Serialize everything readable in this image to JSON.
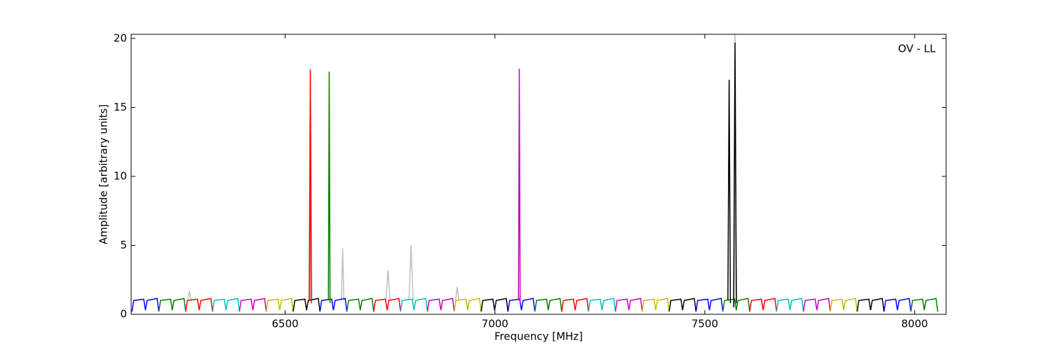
{
  "chart_data": {
    "type": "line",
    "xlabel": "Frequency [MHz]",
    "ylabel": "Amplitude [arbitrary units]",
    "annotation": "OV - LL",
    "xlim": [
      6133,
      8075
    ],
    "ylim": [
      0,
      20.3
    ],
    "xticks": [
      6500,
      7000,
      7500,
      8000
    ],
    "yticks": [
      0,
      5,
      10,
      15,
      20
    ],
    "series": [
      {
        "color": "#bfbfbf",
        "x": [
          6268,
          6272,
          6276,
          null,
          6634,
          6637,
          6640,
          null,
          6740,
          6745,
          6750,
          null,
          6795,
          6800,
          6805,
          null,
          6906,
          6910,
          6914,
          null,
          6556,
          6560,
          6564,
          null,
          7568,
          7572,
          7576
        ],
        "values": [
          1.0,
          1.7,
          1.0,
          null,
          1.0,
          4.8,
          1.0,
          null,
          1.0,
          3.2,
          1.0,
          null,
          1.0,
          5.0,
          1.0,
          null,
          1.0,
          2.0,
          1.0,
          null,
          1.0,
          17.9,
          1.0,
          null,
          1.0,
          20.3,
          1.0
        ]
      },
      {
        "color": "#0000ff",
        "x": [
          6135,
          6139,
          6163,
          6167,
          6171,
          6195,
          6199,
          null,
          6583,
          6587,
          6611,
          6615,
          6619,
          6643,
          6647,
          null,
          7031,
          7035,
          7059,
          7063,
          7067,
          7091,
          7095,
          null,
          7479,
          7483,
          7507,
          7511,
          7515,
          7539,
          7543,
          null,
          7927,
          7931,
          7955,
          7959,
          7963,
          7987,
          7991
        ],
        "values": [
          0.2,
          1.0,
          1.1,
          0.3,
          1.0,
          1.15,
          0.2,
          null,
          0.2,
          1.0,
          1.1,
          0.3,
          1.0,
          1.15,
          0.2,
          null,
          0.2,
          1.0,
          1.1,
          0.3,
          1.0,
          1.15,
          0.2,
          null,
          0.2,
          1.0,
          1.1,
          0.3,
          1.0,
          1.15,
          0.2,
          null,
          0.2,
          1.0,
          1.1,
          0.3,
          1.0,
          1.15,
          0.2
        ]
      },
      {
        "color": "#008000",
        "x": [
          6199,
          6203,
          6227,
          6231,
          6235,
          6259,
          6263,
          null,
          6647,
          6651,
          6675,
          6679,
          6683,
          6707,
          6711,
          null,
          7095,
          7099,
          7123,
          7127,
          7131,
          7155,
          7159,
          null,
          7543,
          7547,
          7571,
          7575,
          7579,
          7603,
          7607,
          null,
          7991,
          7995,
          8019,
          8023,
          8027,
          8051,
          8055
        ],
        "values": [
          0.2,
          1.0,
          1.1,
          0.3,
          1.0,
          1.15,
          0.2,
          null,
          0.2,
          1.0,
          1.1,
          0.3,
          1.0,
          1.15,
          0.2,
          null,
          0.2,
          1.0,
          1.1,
          0.3,
          1.0,
          1.15,
          0.2,
          null,
          0.2,
          1.0,
          1.1,
          0.3,
          1.0,
          1.15,
          0.2,
          null,
          0.2,
          1.0,
          1.1,
          0.3,
          1.0,
          1.15,
          0.2
        ]
      },
      {
        "color": "#ff0000",
        "x": [
          6263,
          6267,
          6291,
          6295,
          6299,
          6323,
          6327,
          null,
          6711,
          6715,
          6739,
          6743,
          6747,
          6771,
          6775,
          null,
          7159,
          7163,
          7187,
          7191,
          7195,
          7219,
          7223,
          null,
          7607,
          7611,
          7635,
          7639,
          7643,
          7667,
          7671
        ],
        "values": [
          0.2,
          1.0,
          1.1,
          0.3,
          1.0,
          1.15,
          0.2,
          null,
          0.2,
          1.0,
          1.1,
          0.3,
          1.0,
          1.15,
          0.2,
          null,
          0.2,
          1.0,
          1.1,
          0.3,
          1.0,
          1.15,
          0.2,
          null,
          0.2,
          1.0,
          1.1,
          0.3,
          1.0,
          1.15,
          0.2
        ]
      },
      {
        "color": "#00bfbf",
        "x": [
          6327,
          6331,
          6355,
          6359,
          6363,
          6387,
          6391,
          null,
          6775,
          6779,
          6803,
          6807,
          6811,
          6835,
          6839,
          null,
          7223,
          7227,
          7251,
          7255,
          7259,
          7283,
          7287,
          null,
          7671,
          7675,
          7699,
          7703,
          7707,
          7731,
          7735
        ],
        "values": [
          0.2,
          1.0,
          1.1,
          0.3,
          1.0,
          1.15,
          0.2,
          null,
          0.2,
          1.0,
          1.1,
          0.3,
          1.0,
          1.15,
          0.2,
          null,
          0.2,
          1.0,
          1.1,
          0.3,
          1.0,
          1.15,
          0.2,
          null,
          0.2,
          1.0,
          1.1,
          0.3,
          1.0,
          1.15,
          0.2
        ]
      },
      {
        "color": "#bf00bf",
        "x": [
          6391,
          6395,
          6419,
          6423,
          6427,
          6451,
          6455,
          null,
          6839,
          6843,
          6867,
          6871,
          6875,
          6899,
          6903,
          null,
          7287,
          7291,
          7315,
          7319,
          7323,
          7347,
          7351,
          null,
          7735,
          7739,
          7763,
          7767,
          7771,
          7795,
          7799
        ],
        "values": [
          0.2,
          1.0,
          1.1,
          0.3,
          1.0,
          1.15,
          0.2,
          null,
          0.2,
          1.0,
          1.1,
          0.3,
          1.0,
          1.15,
          0.2,
          null,
          0.2,
          1.0,
          1.1,
          0.3,
          1.0,
          1.15,
          0.2,
          null,
          0.2,
          1.0,
          1.1,
          0.3,
          1.0,
          1.15,
          0.2
        ]
      },
      {
        "color": "#bfbf00",
        "x": [
          6455,
          6459,
          6483,
          6487,
          6491,
          6515,
          6519,
          null,
          6903,
          6907,
          6931,
          6935,
          6939,
          6963,
          6967,
          null,
          7351,
          7355,
          7379,
          7383,
          7387,
          7411,
          7415,
          null,
          7799,
          7803,
          7827,
          7831,
          7835,
          7859,
          7863
        ],
        "values": [
          0.2,
          1.0,
          1.1,
          0.3,
          1.0,
          1.15,
          0.2,
          null,
          0.2,
          1.0,
          1.1,
          0.3,
          1.0,
          1.15,
          0.2,
          null,
          0.2,
          1.0,
          1.1,
          0.3,
          1.0,
          1.15,
          0.2,
          null,
          0.2,
          1.0,
          1.1,
          0.3,
          1.0,
          1.15,
          0.2
        ]
      },
      {
        "color": "#000000",
        "x": [
          6519,
          6523,
          6547,
          6551,
          6555,
          6579,
          6583,
          null,
          6967,
          6971,
          6995,
          6999,
          7003,
          7027,
          7031,
          null,
          7415,
          7419,
          7443,
          7447,
          7451,
          7475,
          7479,
          null,
          7863,
          7867,
          7891,
          7895,
          7899,
          7923,
          7927
        ],
        "values": [
          0.2,
          1.0,
          1.1,
          0.3,
          1.0,
          1.15,
          0.2,
          null,
          0.2,
          1.0,
          1.1,
          0.3,
          1.0,
          1.15,
          0.2,
          null,
          0.2,
          1.0,
          1.1,
          0.3,
          1.0,
          1.15,
          0.2,
          null,
          0.2,
          1.0,
          1.1,
          0.3,
          1.0,
          1.15,
          0.2
        ]
      },
      {
        "color": "#ff0000",
        "x": [
          6558,
          6560,
          6562
        ],
        "values": [
          1.0,
          17.7,
          0.8
        ]
      },
      {
        "color": "#008000",
        "x": [
          6603,
          6605,
          6607
        ],
        "values": [
          1.0,
          17.6,
          0.8
        ]
      },
      {
        "color": "#bf00bf",
        "x": [
          7056,
          7058,
          7060
        ],
        "values": [
          1.0,
          17.8,
          0.8
        ]
      },
      {
        "color": "#000000",
        "x": [
          7555,
          7558,
          7561,
          null,
          7569,
          7572,
          7575
        ],
        "values": [
          1.0,
          17.0,
          0.8,
          null,
          0.5,
          19.7,
          0.8
        ]
      }
    ]
  }
}
